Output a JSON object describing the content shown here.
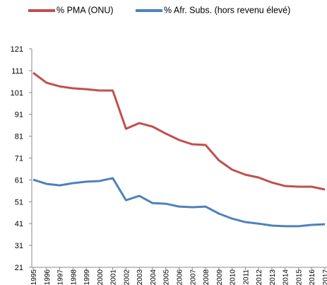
{
  "chart_data": {
    "type": "line",
    "categories": [
      "1995",
      "1996",
      "1997",
      "1998",
      "1999",
      "2000",
      "2001",
      "2002",
      "2003",
      "2004",
      "2005",
      "2006",
      "2007",
      "2008",
      "2009",
      "2010",
      "2011",
      "2012",
      "2013",
      "2014",
      "2015",
      "2016",
      "2017"
    ],
    "series": [
      {
        "name": "% PMA (ONU)",
        "color": "#c0504d",
        "values": [
          110,
          105.5,
          103.8,
          102.9,
          102.5,
          101.9,
          101.9,
          84.4,
          87,
          85.4,
          82.2,
          79.3,
          77.3,
          77,
          70,
          65.7,
          63.4,
          62.1,
          59.8,
          58.2,
          57.9,
          57.9,
          56.6
        ]
      },
      {
        "name": "% Afr. Subs. (hors revenu élevé)",
        "color": "#4f81bd",
        "values": [
          61.1,
          59.2,
          58.5,
          59.5,
          60.2,
          60.5,
          61.8,
          51.7,
          53.7,
          50.4,
          50.1,
          48.8,
          48.5,
          48.8,
          45.6,
          43.3,
          41.7,
          41,
          40.1,
          39.8,
          39.8,
          40.4,
          40.7
        ]
      }
    ],
    "ylim": [
      21,
      121
    ],
    "yticks": [
      21,
      31,
      41,
      51,
      61,
      71,
      81,
      91,
      101,
      111,
      121
    ],
    "grid": false,
    "legend": "top"
  }
}
